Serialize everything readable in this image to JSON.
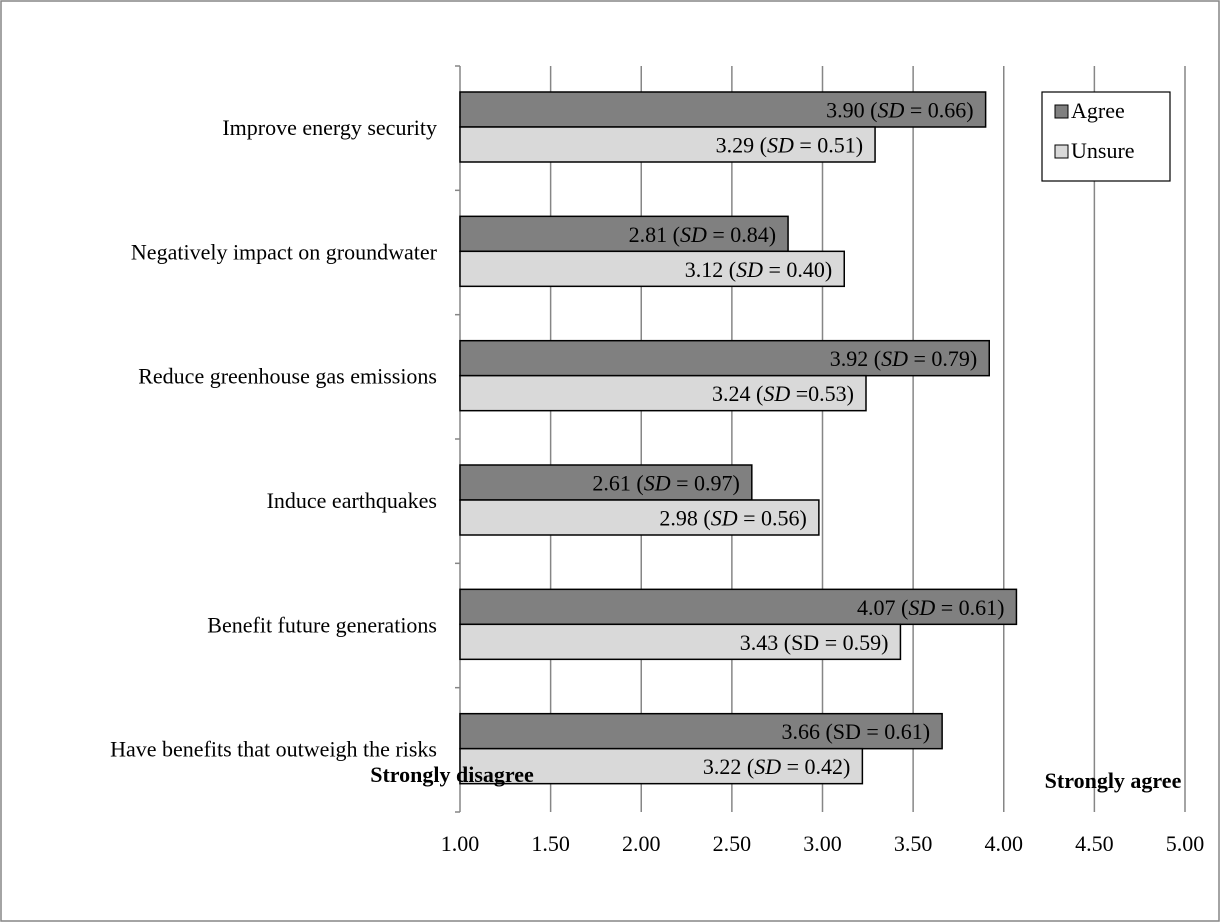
{
  "colors": {
    "agree": "#808080",
    "unsure": "#d9d9d9",
    "gridline": "#868686",
    "bar_border": "#000000"
  },
  "chart_data": {
    "type": "bar",
    "orientation": "horizontal",
    "categories": [
      "Improve energy security",
      "Negatively impact on groundwater",
      "Reduce greenhouse gas emissions",
      "Induce earthquakes",
      "Benefit future generations",
      "Have benefits that outweigh the risks"
    ],
    "series": [
      {
        "name": "Agree",
        "color": "#808080",
        "values": [
          3.9,
          2.81,
          3.92,
          2.61,
          4.07,
          3.66
        ],
        "labels": [
          [
            {
              "t": "3.90 ("
            },
            {
              "t": "SD",
              "i": true
            },
            {
              "t": " = 0.66)"
            }
          ],
          [
            {
              "t": "2.81 ("
            },
            {
              "t": "SD",
              "i": true
            },
            {
              "t": " = 0.84)"
            }
          ],
          [
            {
              "t": "3.92 ("
            },
            {
              "t": "SD",
              "i": true
            },
            {
              "t": " = 0.79)"
            }
          ],
          [
            {
              "t": "2.61 ("
            },
            {
              "t": "SD",
              "i": true
            },
            {
              "t": " = 0.97)"
            }
          ],
          [
            {
              "t": "4.07 ("
            },
            {
              "t": "SD",
              "i": true
            },
            {
              "t": " = 0.61)"
            }
          ],
          [
            {
              "t": "3.66 (SD = 0.61)"
            }
          ]
        ]
      },
      {
        "name": "Unsure",
        "color": "#d9d9d9",
        "values": [
          3.29,
          3.12,
          3.24,
          2.98,
          3.43,
          3.22
        ],
        "labels": [
          [
            {
              "t": "3.29 ("
            },
            {
              "t": "SD",
              "i": true
            },
            {
              "t": " = 0.51)"
            }
          ],
          [
            {
              "t": "3.12 ("
            },
            {
              "t": "SD",
              "i": true
            },
            {
              "t": " = 0.40)"
            }
          ],
          [
            {
              "t": "3.24 ("
            },
            {
              "t": "SD",
              "i": true
            },
            {
              "t": " =0.53)"
            }
          ],
          [
            {
              "t": "2.98 ("
            },
            {
              "t": "SD",
              "i": true
            },
            {
              "t": " = 0.56)"
            }
          ],
          [
            {
              "t": "3.43 (SD = 0.59)"
            }
          ],
          [
            {
              "t": "3.22 ("
            },
            {
              "t": "SD",
              "i": true
            },
            {
              "t": " = 0.42)"
            }
          ]
        ]
      }
    ],
    "x_ticks": [
      "1.00",
      "1.50",
      "2.00",
      "2.50",
      "3.00",
      "3.50",
      "4.00",
      "4.50",
      "5.00"
    ],
    "xlim": [
      1.0,
      5.0
    ],
    "grid": true,
    "legend_position": "top-right",
    "x_left_note": "Strongly disagree",
    "x_right_note": "Strongly agree"
  }
}
